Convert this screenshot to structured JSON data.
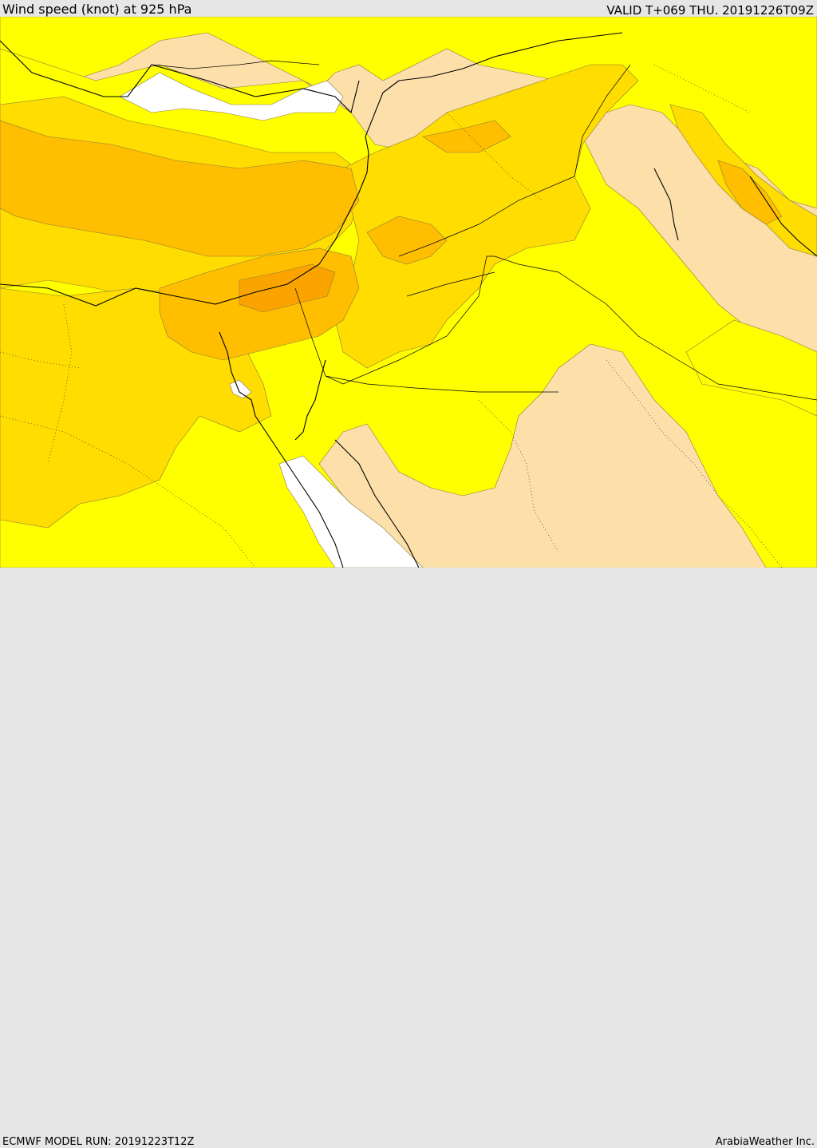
{
  "header": {
    "title": "Wind speed (knot) at 925 hPa",
    "valid": "VALID T+069 THU. 20191226T09Z"
  },
  "footer": {
    "model_run": "ECMWF MODEL RUN: 20191223T12Z",
    "credit": "ArabiaWeather Inc."
  },
  "colors": {
    "background_bar": "#e6e6e6",
    "speed_band_low": "#fddfaa",
    "speed_band_mid": "#ffff00",
    "speed_band_high": "#ffdd00",
    "speed_band_higher": "#ffbf00",
    "speed_band_highest": "#fba400",
    "water_calm": "#ffffff",
    "border_line": "#000000"
  }
}
